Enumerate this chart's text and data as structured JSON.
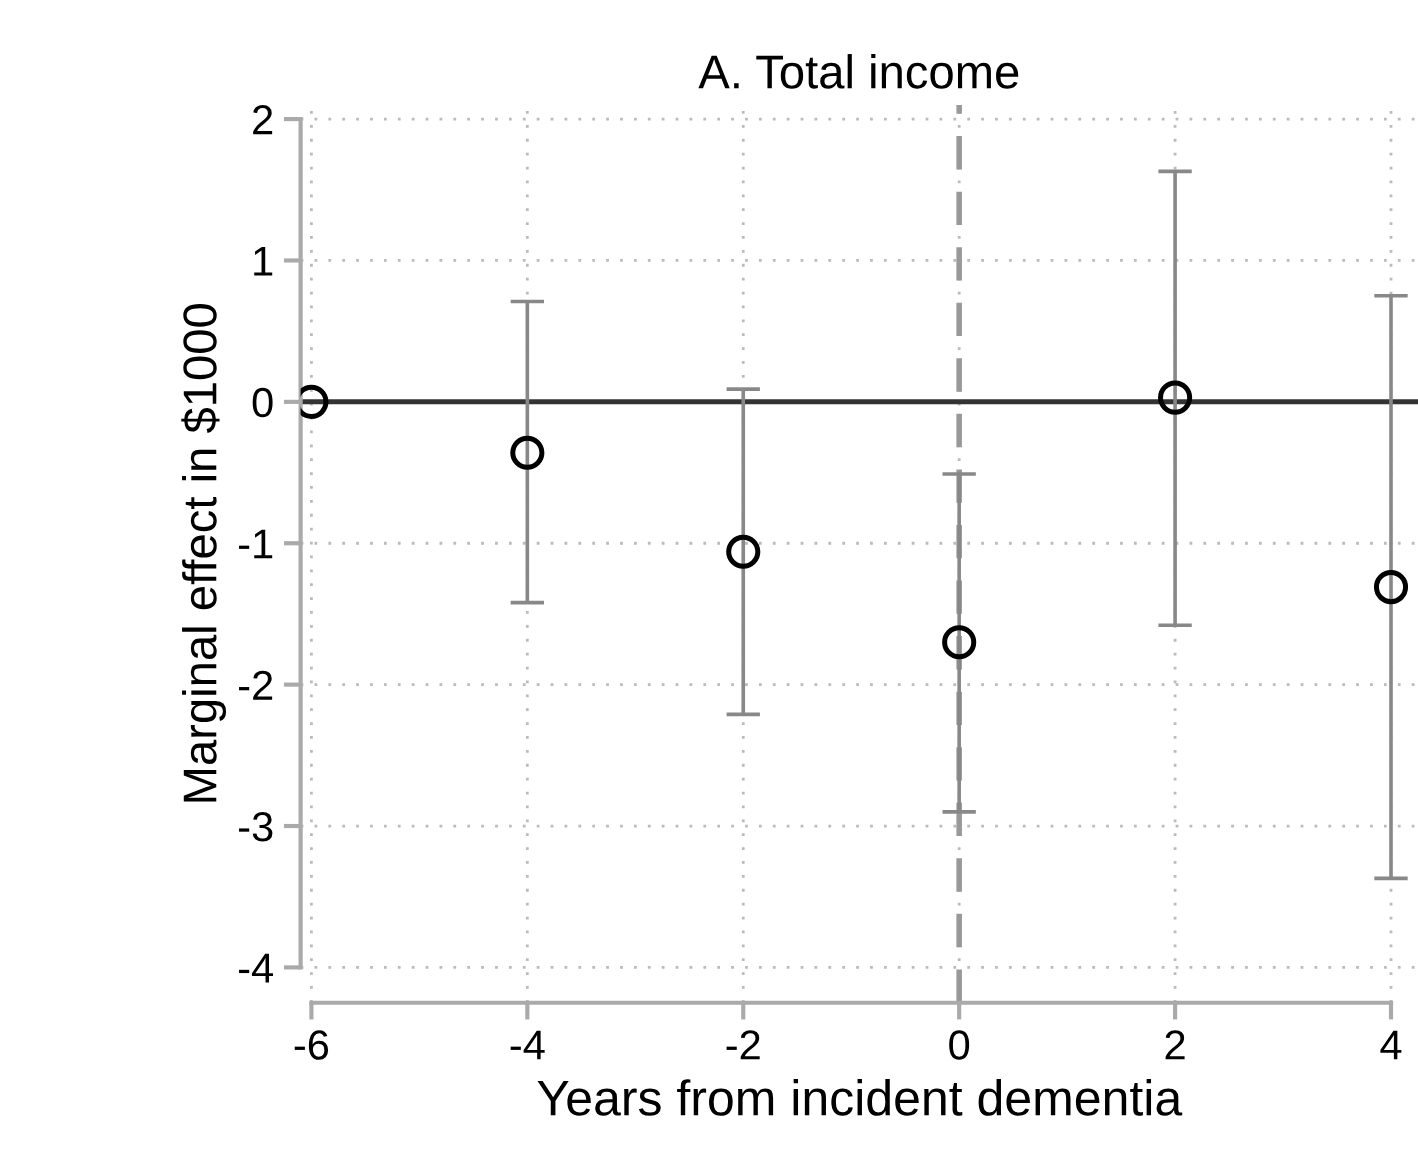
{
  "chart_data": {
    "type": "scatter",
    "title": "A. Total income",
    "xlabel": "Years from incident dementia",
    "ylabel": "Marginal effect in $1000",
    "x": [
      -6,
      -4,
      -2,
      0,
      2,
      4
    ],
    "series": [
      {
        "color": "#000000",
        "values": [
          0,
          -0.36,
          -1.06,
          -1.7,
          0.03,
          -1.31
        ],
        "errors": [
          null,
          [
            -1.42,
            0.71
          ],
          [
            -2.21,
            0.09
          ],
          [
            -2.9,
            -0.51
          ],
          [
            -1.58,
            1.63
          ],
          [
            -3.37,
            0.75
          ]
        ]
      }
    ],
    "xlim": [
      -6.1,
      4.25
    ],
    "ylim": [
      -4.25,
      2.1
    ],
    "xticks": [
      -6,
      -4,
      -2,
      0,
      2,
      4
    ],
    "yticks": [
      -4,
      -3,
      -2,
      -1,
      0,
      1,
      2
    ],
    "grid": true,
    "marker": "circle",
    "ref_lines": [
      {
        "axis": "y",
        "value": 0,
        "color": "#333333",
        "line_style": "solid"
      },
      {
        "axis": "x",
        "value": 0,
        "color": "#999999",
        "line_style": "dashed"
      }
    ]
  }
}
